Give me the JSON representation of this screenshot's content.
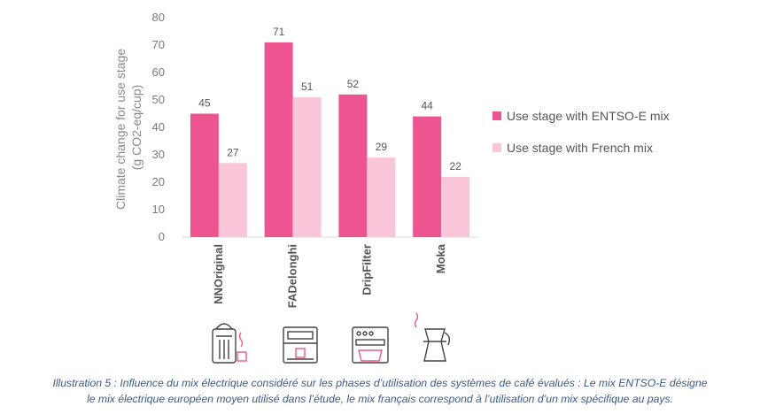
{
  "chart_data": {
    "type": "bar",
    "categories": [
      "NNOriginal",
      "FADelonghi",
      "DripFilter",
      "Moka"
    ],
    "series": [
      {
        "name": "Use stage with ENTSO-E mix",
        "color": "#ee5590",
        "values": [
          45,
          71,
          52,
          44
        ]
      },
      {
        "name": "Use stage with French mix",
        "color": "#f9c6d9",
        "values": [
          27,
          51,
          29,
          22
        ]
      }
    ],
    "ylabel_line1": "Climate change for use stage",
    "ylabel_line2": "(g CO2-eq/cup)",
    "ylim": [
      0,
      80
    ],
    "yticks": [
      0,
      10,
      20,
      30,
      40,
      50,
      60,
      70,
      80
    ],
    "grid": false,
    "legend_position": "right",
    "icons": [
      "capsule-machine-icon",
      "espresso-machine-icon",
      "drip-filter-machine-icon",
      "moka-pot-icon"
    ]
  },
  "caption": {
    "line1": "Illustration 5 : Influence du mix électrique considéré sur les phases d’utilisation des systèmes de café évalués : Le mix ENTSO-E désigne",
    "line2": "le mix électrique européen moyen utilisé dans l’étude, le mix français correspond à l’utilisation d’un mix spécifique au pays."
  }
}
